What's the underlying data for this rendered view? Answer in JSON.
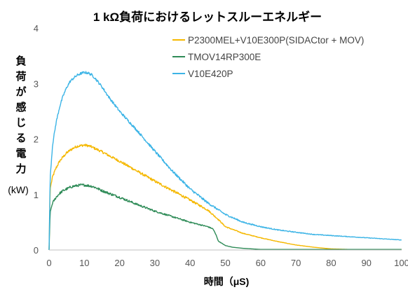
{
  "chart_data": {
    "type": "line",
    "title": "1 kΩ負荷におけるレットスルーエネルギー",
    "xlabel": "時間（μS)",
    "ylabel_chars": [
      "負",
      "荷",
      "が",
      "感",
      "じ",
      "る",
      "電",
      "力"
    ],
    "yunit": "(kW)",
    "xlim": [
      0,
      100
    ],
    "ylim": [
      0,
      4
    ],
    "xticks": [
      "0",
      "10",
      "20",
      "30",
      "40",
      "50",
      "60",
      "70",
      "80",
      "90",
      "100"
    ],
    "yticks": [
      "0",
      "1",
      "2",
      "3",
      "4"
    ],
    "grid": false,
    "legend_position": "top-right",
    "series": [
      {
        "name": "P2300MEL+V10E300P(SIDACtor + MOV)",
        "color": "#f5b800",
        "x": [
          0,
          0.3,
          1,
          2,
          3,
          4,
          5,
          6,
          7,
          8,
          9,
          10,
          11,
          12,
          13,
          14,
          15,
          17,
          20,
          25,
          30,
          35,
          40,
          45,
          48,
          50,
          55,
          60,
          65,
          70,
          75,
          80,
          85,
          90,
          95,
          100
        ],
        "y": [
          0,
          1.1,
          1.32,
          1.48,
          1.6,
          1.68,
          1.75,
          1.8,
          1.84,
          1.87,
          1.88,
          1.89,
          1.88,
          1.86,
          1.83,
          1.8,
          1.77,
          1.7,
          1.6,
          1.42,
          1.24,
          1.07,
          0.9,
          0.72,
          0.55,
          0.42,
          0.3,
          0.22,
          0.15,
          0.09,
          0.05,
          0.02,
          0.01,
          0.01,
          0.01,
          0.01
        ]
      },
      {
        "name": "TMOV14RP300E",
        "color": "#2e8b57",
        "x": [
          0,
          0.3,
          1,
          2,
          3,
          4,
          5,
          6,
          7,
          8,
          9,
          10,
          11,
          12,
          13,
          14,
          15,
          17,
          20,
          25,
          30,
          35,
          40,
          45,
          46.5,
          47.5,
          48,
          50,
          52,
          55,
          60,
          70,
          80,
          90,
          100
        ],
        "y": [
          0,
          0.68,
          0.85,
          0.95,
          1.02,
          1.07,
          1.1,
          1.13,
          1.15,
          1.16,
          1.17,
          1.17,
          1.16,
          1.15,
          1.13,
          1.1,
          1.07,
          1.02,
          0.95,
          0.82,
          0.7,
          0.6,
          0.5,
          0.42,
          0.38,
          0.25,
          0.16,
          0.08,
          0.05,
          0.03,
          0.01,
          0.01,
          0.01,
          0.01,
          0.01
        ]
      },
      {
        "name": "V10E420P",
        "color": "#3cb4e6",
        "x": [
          0,
          0.3,
          1,
          2,
          3,
          4,
          5,
          6,
          7,
          8,
          9,
          10,
          11,
          12,
          13,
          14,
          15,
          17,
          20,
          25,
          30,
          35,
          40,
          45,
          50,
          55,
          60,
          65,
          70,
          75,
          80,
          85,
          90,
          95,
          100
        ],
        "y": [
          0,
          1.3,
          1.9,
          2.3,
          2.58,
          2.78,
          2.93,
          3.04,
          3.1,
          3.15,
          3.18,
          3.2,
          3.19,
          3.16,
          3.1,
          3.02,
          2.94,
          2.75,
          2.5,
          2.15,
          1.78,
          1.42,
          1.1,
          0.85,
          0.64,
          0.5,
          0.42,
          0.36,
          0.32,
          0.28,
          0.26,
          0.24,
          0.22,
          0.2,
          0.18
        ]
      }
    ]
  }
}
